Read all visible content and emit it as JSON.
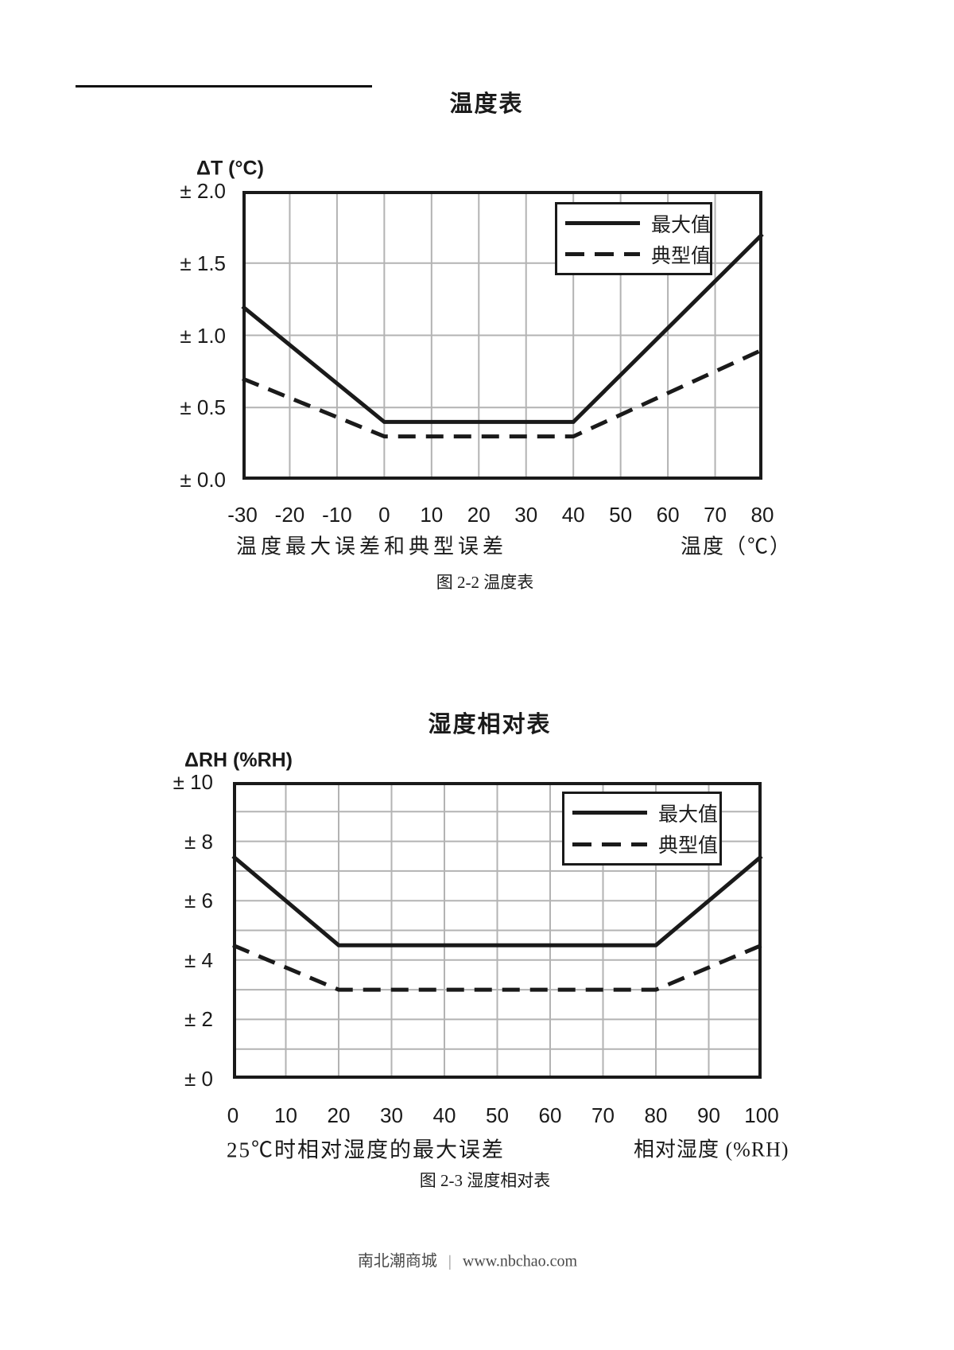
{
  "page_title": "温度表 / 湿度相对表 误差曲线",
  "colors": {
    "line": "#1a1a1a",
    "grid": "#b3b3b3",
    "text": "#1a1a1a",
    "footer_text": "#4a4a4a"
  },
  "footer": {
    "site_name": "南北潮商城",
    "separator": "|",
    "url": "www.nbchao.com"
  },
  "charts": [
    {
      "title": "温度表",
      "y_axis_label": "ΔT (°C)",
      "x_axis_label": "温度（℃）",
      "description": "温度最大误差和典型误差",
      "caption": "图 2-2  温度表",
      "legend": [
        {
          "label": "最大值",
          "style": "solid"
        },
        {
          "label": "典型值",
          "style": "dashed"
        }
      ],
      "chart_data": {
        "type": "line",
        "title": "温度表",
        "xlabel": "温度（℃）",
        "ylabel": "ΔT (°C)",
        "xlim": [
          -30,
          80
        ],
        "ylim": [
          0,
          2.0
        ],
        "x_ticks": [
          -30,
          -20,
          -10,
          0,
          10,
          20,
          30,
          40,
          50,
          60,
          70,
          80
        ],
        "y_ticks": [
          {
            "value": 2.0,
            "label": "± 2.0"
          },
          {
            "value": 1.5,
            "label": "± 1.5"
          },
          {
            "value": 1.0,
            "label": "± 1.0"
          },
          {
            "value": 0.5,
            "label": "± 0.5"
          },
          {
            "value": 0.0,
            "label": "± 0.0"
          }
        ],
        "grid": {
          "x_step": 10,
          "y_step": 0.5,
          "on": true
        },
        "legend_position": "top-right",
        "series": [
          {
            "name": "最大值",
            "style": "solid",
            "x": [
              -30,
              0,
              40,
              80
            ],
            "y": [
              1.2,
              0.4,
              0.4,
              1.7
            ]
          },
          {
            "name": "典型值",
            "style": "dashed",
            "x": [
              -30,
              0,
              40,
              80
            ],
            "y": [
              0.7,
              0.3,
              0.3,
              0.9
            ]
          }
        ]
      }
    },
    {
      "title": "湿度相对表",
      "y_axis_label": "ΔRH (%RH)",
      "x_axis_label": "相对湿度 (%RH)",
      "description": "25℃时相对湿度的最大误差",
      "caption": "图 2-3 湿度相对表",
      "legend": [
        {
          "label": "最大值",
          "style": "solid"
        },
        {
          "label": "典型值",
          "style": "dashed"
        }
      ],
      "chart_data": {
        "type": "line",
        "title": "湿度相对表",
        "xlabel": "相对湿度 (%RH)",
        "ylabel": "ΔRH (%RH)",
        "xlim": [
          0,
          100
        ],
        "ylim": [
          0,
          10
        ],
        "x_ticks": [
          0,
          10,
          20,
          30,
          40,
          50,
          60,
          70,
          80,
          90,
          100
        ],
        "y_ticks": [
          {
            "value": 10,
            "label": "± 10"
          },
          {
            "value": 8,
            "label": "± 8"
          },
          {
            "value": 6,
            "label": "± 6"
          },
          {
            "value": 4,
            "label": "± 4"
          },
          {
            "value": 2,
            "label": "± 2"
          },
          {
            "value": 0,
            "label": "± 0"
          }
        ],
        "grid": {
          "x_step": 10,
          "y_step": 1,
          "on": true
        },
        "legend_position": "top-right",
        "series": [
          {
            "name": "最大值",
            "style": "solid",
            "x": [
              0,
              20,
              80,
              100
            ],
            "y": [
              7.5,
              4.5,
              4.5,
              7.5
            ]
          },
          {
            "name": "典型值",
            "style": "dashed",
            "x": [
              0,
              20,
              80,
              100
            ],
            "y": [
              4.5,
              3.0,
              3.0,
              4.5
            ]
          }
        ]
      }
    }
  ]
}
